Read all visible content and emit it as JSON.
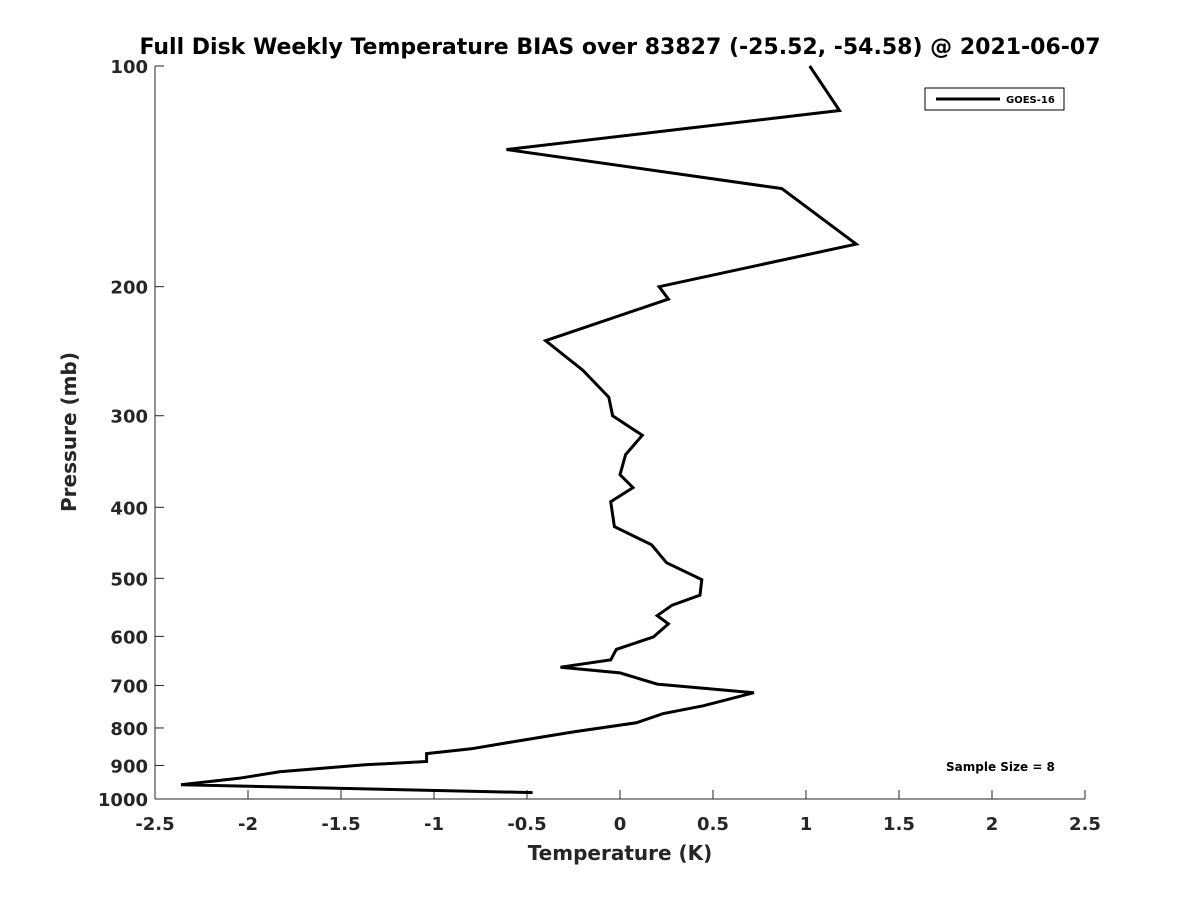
{
  "chart_data": {
    "type": "line",
    "title": "Full Disk Weekly Temperature BIAS over 83827 (-25.52, -54.58) @ 2021-06-07",
    "xlabel": "Temperature (K)",
    "ylabel": "Pressure (mb)",
    "xlim": [
      -2.5,
      2.5
    ],
    "ylim": [
      100,
      1000
    ],
    "y_scale": "log",
    "y_reversed": true,
    "x_ticks": [
      -2.5,
      -2,
      -1.5,
      -1,
      -0.5,
      0,
      0.5,
      1,
      1.5,
      2,
      2.5
    ],
    "x_tick_labels": [
      "-2.5",
      "-2",
      "-1.5",
      "-1",
      "-0.5",
      "0",
      "0.5",
      "1",
      "1.5",
      "2",
      "2.5"
    ],
    "y_ticks": [
      100,
      200,
      300,
      400,
      500,
      600,
      700,
      800,
      900,
      1000
    ],
    "y_tick_labels": [
      "100",
      "200",
      "300",
      "400",
      "500",
      "600",
      "700",
      "800",
      "900",
      "1000"
    ],
    "grid": false,
    "legend_position": "top-right",
    "series": [
      {
        "name": "GOES-16",
        "color": "#000000",
        "x": [
          1.02,
          1.18,
          -0.61,
          0.87,
          1.27,
          0.21,
          0.26,
          -0.4,
          -0.2,
          -0.06,
          -0.04,
          0.12,
          0.03,
          0.0,
          0.07,
          -0.05,
          -0.03,
          0.17,
          0.25,
          0.44,
          0.43,
          0.28,
          0.2,
          0.26,
          0.18,
          -0.02,
          -0.05,
          -0.32,
          0.0,
          0.2,
          0.72,
          0.45,
          0.23,
          0.09,
          -0.25,
          -0.57,
          -0.8,
          -1.04,
          -1.04,
          -1.37,
          -1.83,
          -2.05,
          -2.36,
          -0.47
        ],
        "y": [
          100,
          115,
          130,
          147,
          175,
          200,
          208,
          237,
          260,
          283,
          300,
          319,
          339,
          361,
          376,
          393,
          425,
          450,
          476,
          502,
          527,
          544,
          562,
          577,
          601,
          625,
          646,
          661,
          673,
          697,
          716,
          746,
          765,
          787,
          810,
          835,
          854,
          867,
          889,
          898,
          918,
          937,
          956,
          980
        ]
      }
    ]
  },
  "annotations": {
    "sample_size": "Sample Size = 8"
  }
}
